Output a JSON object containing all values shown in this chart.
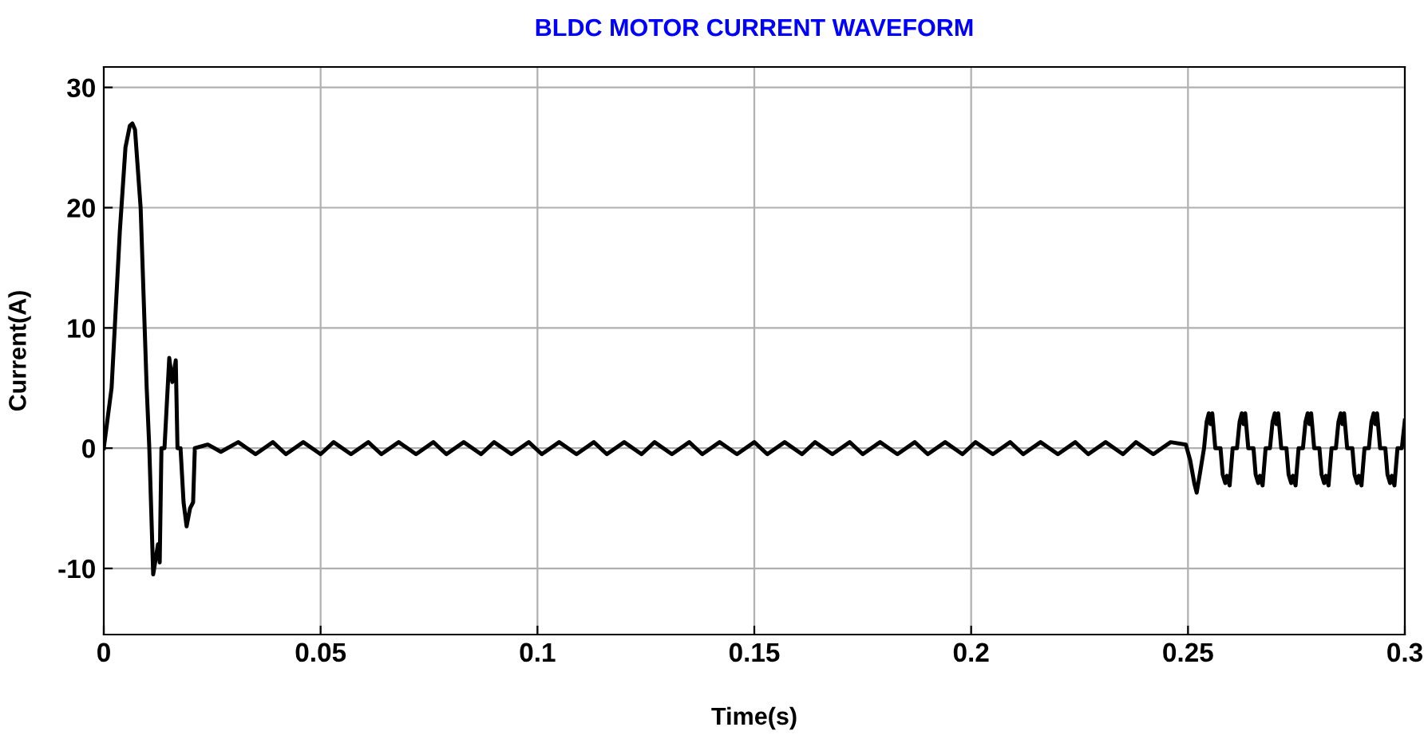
{
  "chart_data": {
    "type": "line",
    "title": "BLDC MOTOR CURRENT WAVEFORM",
    "xlabel": "Time(s)",
    "ylabel": "Current(A)",
    "xlim": [
      0,
      0.3
    ],
    "ylim": [
      -15.5,
      31.7
    ],
    "xticks": [
      0,
      0.05,
      0.1,
      0.15,
      0.2,
      0.25,
      0.3
    ],
    "yticks": [
      -10,
      0,
      10,
      20,
      30
    ],
    "grid": true,
    "marker": "none",
    "line_style": "solid",
    "series": [
      {
        "color": "#000000",
        "x": [
          0,
          0.0018,
          0.0037,
          0.005,
          0.006,
          0.0066,
          0.0072,
          0.0085,
          0.0099,
          0.0105,
          0.0114,
          0.0125,
          0.0129,
          0.0133,
          0.014,
          0.0151,
          0.0158,
          0.0166,
          0.017,
          0.0177,
          0.0184,
          0.0191,
          0.0199,
          0.0206,
          0.021,
          0.024,
          0.027,
          0.031,
          0.035,
          0.039,
          0.042,
          0.046,
          0.05,
          0.053,
          0.057,
          0.061,
          0.064,
          0.068,
          0.072,
          0.076,
          0.079,
          0.083,
          0.087,
          0.09,
          0.094,
          0.098,
          0.101,
          0.105,
          0.109,
          0.113,
          0.116,
          0.12,
          0.124,
          0.127,
          0.131,
          0.135,
          0.138,
          0.142,
          0.146,
          0.15,
          0.153,
          0.157,
          0.161,
          0.164,
          0.168,
          0.172,
          0.175,
          0.179,
          0.183,
          0.187,
          0.19,
          0.194,
          0.198,
          0.201,
          0.205,
          0.209,
          0.212,
          0.216,
          0.22,
          0.224,
          0.227,
          0.231,
          0.235,
          0.238,
          0.242,
          0.246,
          0.2495,
          0.2505,
          0.2515,
          0.252,
          0.2528,
          0.2537,
          0.2543,
          0.2548,
          0.2552,
          0.2556,
          0.2563,
          0.2575,
          0.258,
          0.2586,
          0.259,
          0.2596,
          0.2603,
          0.2613,
          0.2619,
          0.2624,
          0.2628,
          0.2632,
          0.2639,
          0.2651,
          0.2656,
          0.2662,
          0.2666,
          0.2672,
          0.2679,
          0.2689,
          0.2695,
          0.27,
          0.2704,
          0.2708,
          0.2715,
          0.2727,
          0.2732,
          0.2738,
          0.2742,
          0.2748,
          0.2755,
          0.2765,
          0.2771,
          0.2776,
          0.278,
          0.2784,
          0.2791,
          0.2803,
          0.2808,
          0.2814,
          0.2818,
          0.2824,
          0.2831,
          0.2841,
          0.2847,
          0.2852,
          0.2856,
          0.286,
          0.2867,
          0.2879,
          0.2884,
          0.289,
          0.2894,
          0.29,
          0.2907,
          0.2917,
          0.2923,
          0.2928,
          0.2932,
          0.2936,
          0.2943,
          0.2955,
          0.296,
          0.2966,
          0.297,
          0.2976,
          0.2983,
          0.2993,
          0.3
        ],
        "values": [
          0,
          5,
          18,
          25,
          26.8,
          27,
          26.5,
          20,
          5,
          0,
          -10.5,
          -8,
          -9.5,
          0,
          0,
          7.5,
          5.5,
          7.3,
          0,
          0,
          -4.5,
          -6.5,
          -5,
          -4.5,
          0,
          0.3,
          -0.3,
          0.5,
          -0.5,
          0.5,
          -0.5,
          0.5,
          -0.5,
          0.5,
          -0.5,
          0.5,
          -0.5,
          0.5,
          -0.5,
          0.5,
          -0.5,
          0.5,
          -0.5,
          0.5,
          -0.5,
          0.5,
          -0.5,
          0.5,
          -0.5,
          0.5,
          -0.5,
          0.5,
          -0.5,
          0.5,
          -0.5,
          0.5,
          -0.5,
          0.5,
          -0.5,
          0.5,
          -0.5,
          0.5,
          -0.5,
          0.5,
          -0.5,
          0.5,
          -0.5,
          0.5,
          -0.5,
          0.5,
          -0.5,
          0.5,
          -0.5,
          0.5,
          -0.5,
          0.5,
          -0.5,
          0.5,
          -0.5,
          0.5,
          -0.5,
          0.5,
          -0.5,
          0.5,
          -0.5,
          0.5,
          0.3,
          -1,
          -3,
          -3.7,
          -2,
          0,
          2.2,
          2.9,
          2.0,
          2.9,
          0,
          0,
          -2.2,
          -2.9,
          -2.3,
          -3.1,
          0,
          0,
          2.2,
          2.9,
          2.0,
          2.9,
          0,
          0,
          -2.2,
          -2.9,
          -2.3,
          -3.1,
          0,
          0,
          2.2,
          2.9,
          2.0,
          2.9,
          0,
          0,
          -2.2,
          -2.9,
          -2.3,
          -3.1,
          0,
          0,
          2.2,
          2.9,
          2.0,
          2.9,
          0,
          0,
          -2.2,
          -2.9,
          -2.3,
          -3.1,
          0,
          0,
          2.2,
          2.9,
          2.0,
          2.9,
          0,
          0,
          -2.2,
          -2.9,
          -2.3,
          -3.1,
          0,
          0,
          2.2,
          2.9,
          2.0,
          2.9,
          0,
          0,
          -2.2,
          -2.9,
          -2.3,
          -3.1,
          0,
          0,
          2.3
        ]
      }
    ]
  }
}
